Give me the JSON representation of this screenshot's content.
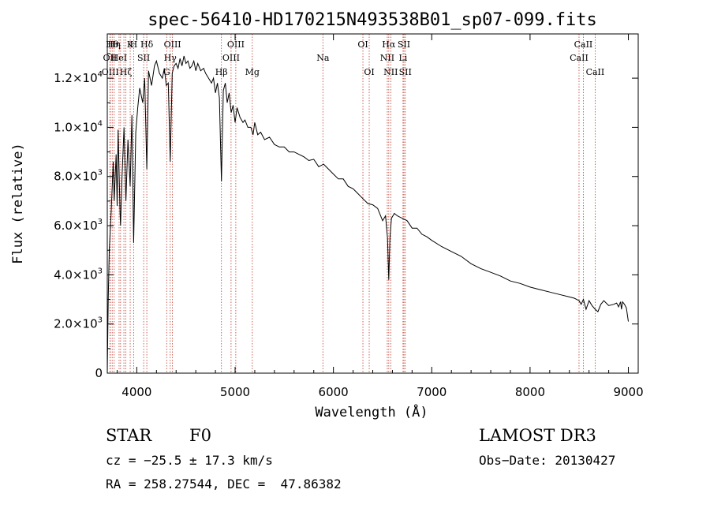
{
  "chart_data": {
    "type": "line",
    "title": "spec-56410-HD170215N493538B01_sp07-099.fits",
    "xlabel": "Wavelength (Å)",
    "ylabel": "Flux (relative)",
    "xlim": [
      3700,
      9100
    ],
    "ylim": [
      0,
      13800
    ],
    "x_ticks": [
      4000,
      5000,
      6000,
      7000,
      8000,
      9000
    ],
    "x_tick_labels": [
      "4000",
      "5000",
      "6000",
      "7000",
      "8000",
      "9000"
    ],
    "y_ticks": [
      0,
      2000,
      4000,
      6000,
      8000,
      10000,
      12000
    ],
    "y_tick_labels": [
      {
        "mant": "0",
        "exp": ""
      },
      {
        "mant": "2.0×10",
        "exp": "3"
      },
      {
        "mant": "4.0×10",
        "exp": "3"
      },
      {
        "mant": "6.0×10",
        "exp": "3"
      },
      {
        "mant": "8.0×10",
        "exp": "3"
      },
      {
        "mant": "1.0×10",
        "exp": "4"
      },
      {
        "mant": "1.2×10",
        "exp": "4"
      }
    ],
    "series": [
      {
        "name": "spectrum",
        "x": [
          3700,
          3710,
          3720,
          3740,
          3760,
          3770,
          3790,
          3800,
          3810,
          3830,
          3835,
          3850,
          3870,
          3889,
          3910,
          3933,
          3950,
          3968,
          3990,
          4010,
          4030,
          4060,
          4080,
          4102,
          4120,
          4150,
          4180,
          4200,
          4230,
          4260,
          4280,
          4300,
          4320,
          4340,
          4360,
          4380,
          4400,
          4420,
          4440,
          4460,
          4480,
          4500,
          4520,
          4540,
          4560,
          4580,
          4600,
          4620,
          4650,
          4680,
          4700,
          4730,
          4760,
          4780,
          4800,
          4820,
          4840,
          4861,
          4880,
          4900,
          4920,
          4940,
          4960,
          4980,
          5000,
          5020,
          5050,
          5080,
          5100,
          5130,
          5160,
          5183,
          5200,
          5230,
          5260,
          5300,
          5350,
          5400,
          5450,
          5500,
          5550,
          5600,
          5650,
          5700,
          5750,
          5800,
          5850,
          5900,
          5950,
          6000,
          6050,
          6100,
          6150,
          6200,
          6250,
          6300,
          6350,
          6400,
          6450,
          6500,
          6530,
          6550,
          6563,
          6575,
          6590,
          6620,
          6650,
          6700,
          6750,
          6800,
          6850,
          6900,
          6950,
          7000,
          7100,
          7200,
          7300,
          7400,
          7500,
          7600,
          7700,
          7800,
          7900,
          8000,
          8100,
          8200,
          8300,
          8400,
          8450,
          8498,
          8520,
          8542,
          8570,
          8600,
          8630,
          8662,
          8690,
          8720,
          8750,
          8800,
          8850,
          8880,
          8900,
          8920,
          8930,
          8940,
          8960,
          8980,
          9000
        ],
        "y": [
          0,
          3000,
          5000,
          6600,
          8600,
          7000,
          8900,
          6800,
          9900,
          6500,
          6000,
          8000,
          10000,
          7000,
          9500,
          7600,
          10500,
          5300,
          9800,
          10800,
          11600,
          11000,
          12000,
          8300,
          12300,
          11700,
          12500,
          12700,
          12200,
          12000,
          12400,
          11700,
          11800,
          8600,
          12200,
          12500,
          12600,
          12400,
          12800,
          12500,
          12900,
          12600,
          12700,
          12400,
          12500,
          12700,
          12300,
          12600,
          12300,
          12400,
          12200,
          12000,
          11800,
          12000,
          11400,
          11800,
          11200,
          7800,
          11500,
          11800,
          11000,
          11400,
          10600,
          10900,
          10200,
          10800,
          10400,
          10200,
          10300,
          10000,
          10000,
          9700,
          10200,
          9700,
          9800,
          9500,
          9600,
          9300,
          9200,
          9200,
          9000,
          9000,
          8900,
          8800,
          8650,
          8700,
          8400,
          8500,
          8300,
          8100,
          7900,
          7900,
          7600,
          7500,
          7300,
          7100,
          6900,
          6850,
          6700,
          6200,
          6400,
          5500,
          3800,
          5500,
          6300,
          6500,
          6400,
          6300,
          6200,
          5900,
          5900,
          5650,
          5550,
          5400,
          5150,
          4950,
          4750,
          4450,
          4250,
          4100,
          3950,
          3750,
          3650,
          3500,
          3400,
          3300,
          3200,
          3100,
          3050,
          2950,
          2800,
          3000,
          2600,
          2950,
          2750,
          2600,
          2500,
          2800,
          2950,
          2750,
          2800,
          2850,
          2700,
          2900,
          2600,
          2900,
          2800,
          2650,
          2100
        ]
      }
    ],
    "line_markers": [
      {
        "x": 3727,
        "label": "OII",
        "row": 1
      },
      {
        "x": 3730,
        "label": "OIII",
        "row": 2
      },
      {
        "x": 3750,
        "label": "Hθ",
        "row": 0
      },
      {
        "x": 3770,
        "label": "Hη",
        "row": 0
      },
      {
        "x": 3820,
        "label": "HeI",
        "row": 1
      },
      {
        "x": 3835,
        "label": "",
        "row": -1
      },
      {
        "x": 3869,
        "label": "",
        "row": -1
      },
      {
        "x": 3889,
        "label": "Hζ",
        "row": 2
      },
      {
        "x": 3933,
        "label": "K",
        "row": 0
      },
      {
        "x": 3968,
        "label": "H",
        "row": 0
      },
      {
        "x": 4070,
        "label": "SII",
        "row": 1
      },
      {
        "x": 4102,
        "label": "Hδ",
        "row": 0
      },
      {
        "x": 4340,
        "label": "Hγ",
        "row": 1
      },
      {
        "x": 4304,
        "label": "G",
        "row": 2
      },
      {
        "x": 4363,
        "label": "OIII",
        "row": 0
      },
      {
        "x": 4861,
        "label": "Hβ",
        "row": 2
      },
      {
        "x": 4959,
        "label": "OIII",
        "row": 1
      },
      {
        "x": 5007,
        "label": "OIII",
        "row": 0
      },
      {
        "x": 5175,
        "label": "Mg",
        "row": 2
      },
      {
        "x": 5893,
        "label": "Na",
        "row": 1
      },
      {
        "x": 6300,
        "label": "OI",
        "row": 0
      },
      {
        "x": 6364,
        "label": "OI",
        "row": 2
      },
      {
        "x": 6548,
        "label": "NII",
        "row": 1
      },
      {
        "x": 6563,
        "label": "Hα",
        "row": 0
      },
      {
        "x": 6583,
        "label": "NII",
        "row": 2
      },
      {
        "x": 6708,
        "label": "Li",
        "row": 1
      },
      {
        "x": 6717,
        "label": "SII",
        "row": 0
      },
      {
        "x": 6731,
        "label": "SII",
        "row": 2
      },
      {
        "x": 8498,
        "label": "CaII",
        "row": 1
      },
      {
        "x": 8542,
        "label": "CaII",
        "row": 0
      },
      {
        "x": 8662,
        "label": "CaII",
        "row": 2
      }
    ],
    "colors": {
      "spectrum": "#000000",
      "markers": "#c0392b",
      "axes": "#000000"
    }
  },
  "footer": {
    "object_type": "STAR",
    "subclass": "F0",
    "survey": "LAMOST DR3",
    "cz": "cz = −25.5 ± 17.3 km/s",
    "obs_date": "Obs−Date: 20130427",
    "coords": "RA = 258.27544, DEC =  47.86382"
  }
}
